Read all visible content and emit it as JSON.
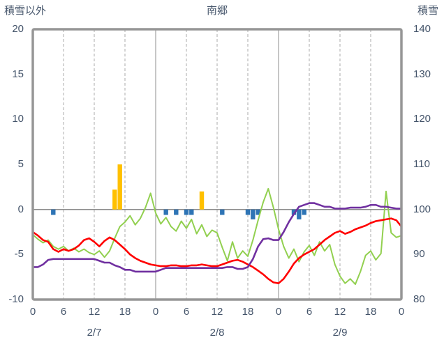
{
  "chart_data": {
    "type": "combo",
    "title": "南郷",
    "x_unit": "hour",
    "x_range": [
      0,
      72
    ],
    "x_tick_interval": 6,
    "x_tick_labels": [
      "0",
      "6",
      "12",
      "18",
      "0",
      "6",
      "12",
      "18",
      "0",
      "6",
      "12",
      "18",
      "0"
    ],
    "day_labels": [
      {
        "label": "2/7",
        "center_hour": 12
      },
      {
        "label": "2/8",
        "center_hour": 36
      },
      {
        "label": "2/9",
        "center_hour": 60
      }
    ],
    "left_axis": {
      "title": "積雪以外",
      "min": -10,
      "max": 20,
      "ticks": [
        20,
        15,
        10,
        5,
        0,
        -5,
        -10
      ]
    },
    "right_axis": {
      "title": "積雪",
      "min": 80,
      "max": 140,
      "ticks": [
        140,
        130,
        120,
        110,
        100,
        90,
        80
      ]
    },
    "grid": {
      "vertical_dashed_interval_hours": 6,
      "vertical_solid_at_day_boundaries": true,
      "horizontal_gridlines": false,
      "zero_line": true
    },
    "legend": "none",
    "style": {
      "frame": "#969696",
      "grid_dashed": "#ABABAB",
      "grid_solid": "#8C8C8C",
      "zero_line": "#8C8C8C",
      "text": "#44546A",
      "background": "#FFFFFF"
    },
    "series": [
      {
        "id": "orange-bars",
        "type": "bar",
        "axis": "left",
        "color": "#FFC000",
        "points": [
          {
            "h": 16,
            "v": 2.2
          },
          {
            "h": 17,
            "v": 5.0
          },
          {
            "h": 33,
            "v": 2.0
          }
        ]
      },
      {
        "id": "blue-bars",
        "type": "bar",
        "axis": "left",
        "color": "#2E74B5",
        "points": [
          {
            "h": 4,
            "v": -0.6
          },
          {
            "h": 26,
            "v": -0.6
          },
          {
            "h": 28,
            "v": -0.6
          },
          {
            "h": 30,
            "v": -0.6
          },
          {
            "h": 31,
            "v": -0.6
          },
          {
            "h": 37,
            "v": -0.6
          },
          {
            "h": 42,
            "v": -0.6
          },
          {
            "h": 43,
            "v": -1.1
          },
          {
            "h": 44,
            "v": -0.6
          },
          {
            "h": 51,
            "v": -0.6
          },
          {
            "h": 52,
            "v": -1.1
          },
          {
            "h": 53,
            "v": -0.6
          }
        ]
      },
      {
        "id": "green-line",
        "type": "line",
        "axis": "left",
        "color": "#92D050",
        "width": 2,
        "values": [
          -2.8,
          -3.3,
          -3.7,
          -3.4,
          -4.1,
          -4.4,
          -4.1,
          -4.6,
          -4.3,
          -4.7,
          -4.4,
          -4.8,
          -5.0,
          -4.6,
          -5.3,
          -4.6,
          -3.2,
          -1.9,
          -1.4,
          -0.7,
          -1.7,
          -1.0,
          0.2,
          1.8,
          -0.4,
          -1.6,
          -0.9,
          -1.9,
          -2.4,
          -1.3,
          -2.1,
          -1.1,
          -2.7,
          -1.7,
          -3.0,
          -2.3,
          -2.6,
          -4.2,
          -5.7,
          -3.6,
          -5.4,
          -4.6,
          -5.2,
          -3.4,
          -1.2,
          0.8,
          2.3,
          0.2,
          -2.2,
          -4.1,
          -5.4,
          -4.4,
          -5.8,
          -4.7,
          -4.0,
          -5.1,
          -3.6,
          -4.6,
          -3.9,
          -6.1,
          -7.4,
          -8.2,
          -7.7,
          -8.3,
          -6.9,
          -5.1,
          -4.6,
          -5.6,
          -4.9,
          2.0,
          -2.6,
          -3.1,
          -2.9
        ]
      },
      {
        "id": "red-line",
        "type": "line",
        "axis": "left",
        "color": "#FF0000",
        "width": 2.6,
        "values": [
          -2.5,
          -2.9,
          -3.4,
          -3.6,
          -4.4,
          -4.7,
          -4.4,
          -4.6,
          -4.4,
          -4.0,
          -3.4,
          -3.2,
          -3.6,
          -4.1,
          -3.5,
          -3.1,
          -3.4,
          -3.9,
          -4.4,
          -5.0,
          -5.4,
          -5.7,
          -5.9,
          -6.1,
          -6.2,
          -6.3,
          -6.3,
          -6.2,
          -6.2,
          -6.3,
          -6.3,
          -6.2,
          -6.2,
          -6.1,
          -6.2,
          -6.3,
          -6.3,
          -6.1,
          -5.9,
          -5.7,
          -5.6,
          -5.8,
          -6.1,
          -6.4,
          -6.8,
          -7.2,
          -7.7,
          -8.1,
          -8.2,
          -7.7,
          -6.9,
          -6.0,
          -5.4,
          -5.0,
          -4.7,
          -4.4,
          -3.9,
          -3.4,
          -3.0,
          -2.6,
          -2.4,
          -2.7,
          -2.5,
          -2.2,
          -2.0,
          -1.8,
          -1.5,
          -1.3,
          -1.2,
          -1.1,
          -1.0,
          -1.2,
          -1.9
        ]
      },
      {
        "id": "purple-line",
        "type": "line",
        "axis": "right",
        "color": "#7030A0",
        "width": 2.6,
        "values": [
          87.2,
          87.2,
          87.8,
          88.8,
          89.0,
          89.0,
          89.0,
          89.0,
          89.0,
          89.0,
          89.0,
          89.0,
          89.0,
          88.6,
          88.2,
          88.2,
          87.6,
          87.2,
          86.6,
          86.6,
          86.2,
          86.2,
          86.2,
          86.2,
          86.2,
          86.6,
          87.0,
          87.0,
          87.0,
          87.0,
          87.0,
          87.0,
          87.0,
          87.0,
          87.0,
          87.0,
          87.0,
          87.0,
          87.2,
          87.2,
          86.8,
          86.8,
          87.2,
          89.0,
          91.8,
          93.4,
          93.6,
          93.2,
          93.2,
          95.0,
          97.2,
          99.0,
          100.6,
          101.0,
          101.4,
          101.4,
          101.0,
          100.6,
          100.6,
          100.2,
          100.2,
          100.2,
          100.4,
          100.4,
          100.4,
          100.6,
          101.0,
          101.0,
          100.6,
          100.6,
          100.4,
          100.2,
          100.2
        ]
      }
    ]
  }
}
